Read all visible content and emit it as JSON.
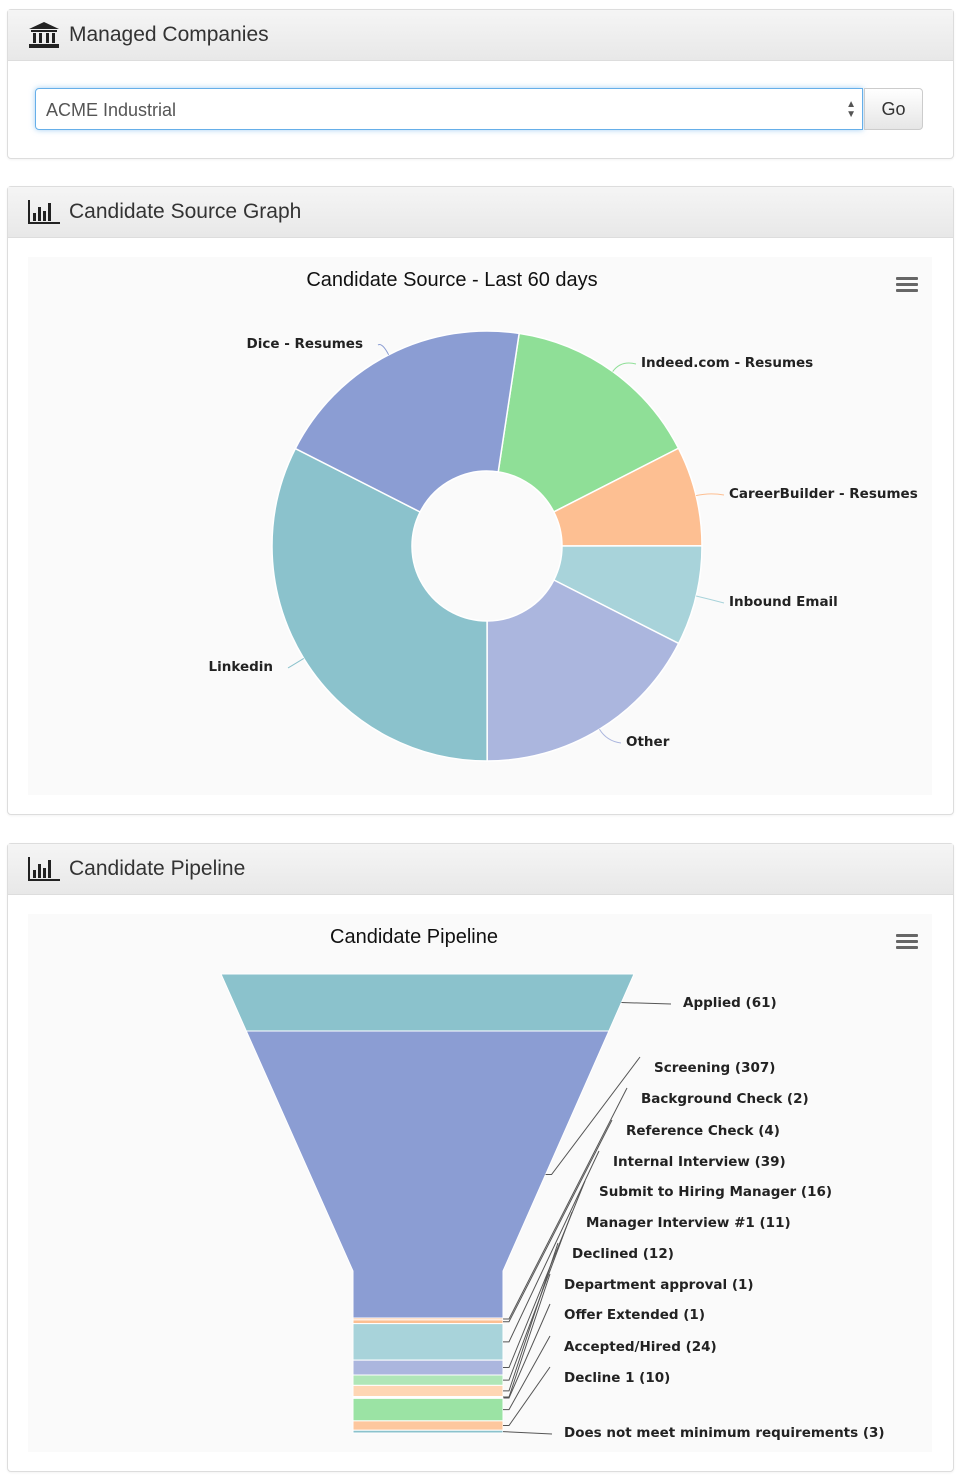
{
  "managed": {
    "title": "Managed Companies",
    "selected": "ACME Industrial",
    "go_label": "Go"
  },
  "source_panel": {
    "title": "Candidate Source Graph"
  },
  "pipeline_panel": {
    "title": "Candidate Pipeline"
  },
  "chart_data": [
    {
      "type": "pie",
      "title": "Candidate Source - Last 60 days",
      "donut": true,
      "labels": [
        "Indeed.com - Resumes",
        "CareerBuilder - Resumes",
        "Inbound Email",
        "Other",
        "Linkedin",
        "Dice - Resumes"
      ],
      "values": [
        15.1,
        7.5,
        7.5,
        17.5,
        32.5,
        19.9
      ],
      "colors": [
        "#8fdf97",
        "#fdbf92",
        "#a8d3da",
        "#abb6de",
        "#8bc2cc",
        "#8b9dd3"
      ]
    },
    {
      "type": "funnel",
      "title": "Candidate Pipeline",
      "labels": [
        "Applied (61)",
        "Screening (307)",
        "Background Check (2)",
        "Reference Check (4)",
        "Internal Interview (39)",
        "Submit to Hiring Manager (16)",
        "Manager Interview #1 (11)",
        "Declined (12)",
        "Department approval (1)",
        "Offer Extended (1)",
        "Accepted/Hired (24)",
        "Decline 1 (10)",
        "Does not meet minimum requirements (3)"
      ],
      "values": [
        61,
        307,
        2,
        4,
        39,
        16,
        11,
        12,
        1,
        1,
        24,
        10,
        3
      ],
      "colors": [
        "#8bc2cc",
        "#8b9dd3",
        "#fdbf92",
        "#fdbf92",
        "#a8d3da",
        "#abb6de",
        "#afe6b7",
        "#fed6b4",
        "#a8d3da",
        "#abb6de",
        "#9be3a4",
        "#fdc79e",
        "#8bc2cc"
      ]
    }
  ]
}
